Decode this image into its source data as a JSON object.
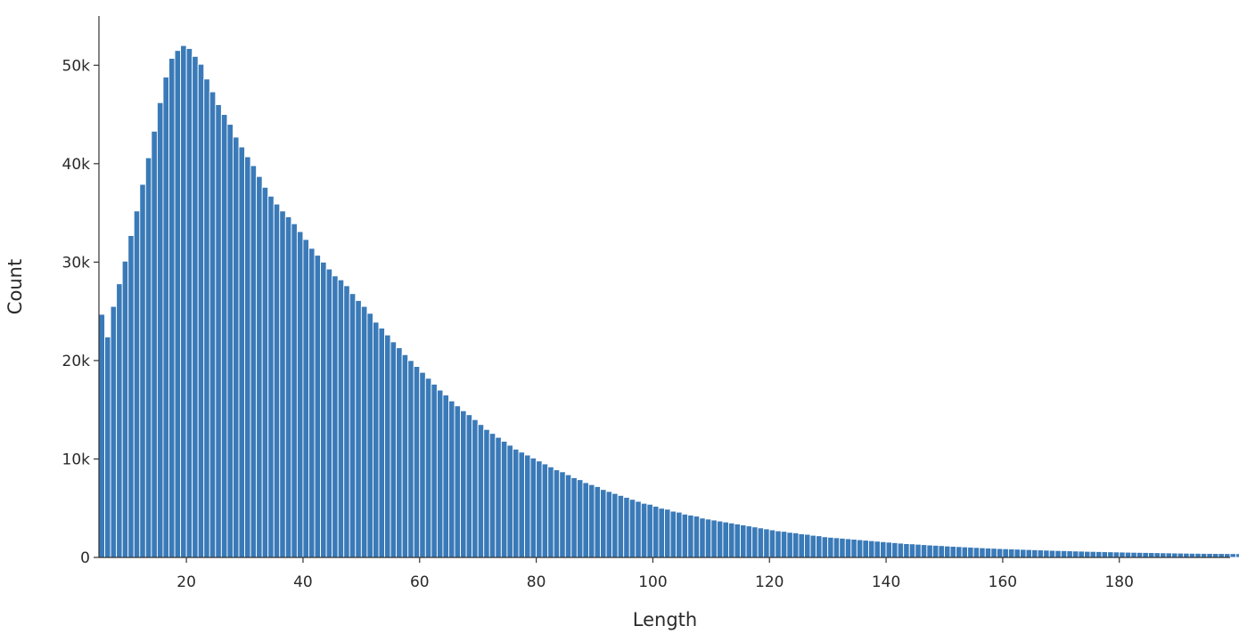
{
  "chart_data": {
    "type": "bar",
    "title": "",
    "xlabel": "Length",
    "ylabel": "Count",
    "bar_color": "#3a7ab8",
    "grid": false,
    "legend": "none",
    "xlim": [
      5,
      199
    ],
    "ylim": [
      0,
      55000
    ],
    "xticks": [
      20,
      40,
      60,
      80,
      100,
      120,
      140,
      160,
      180
    ],
    "yticks": [
      0,
      10000,
      20000,
      30000,
      40000,
      50000
    ],
    "ytick_labels": [
      "0",
      "10k",
      "20k",
      "30k",
      "40k",
      "50k"
    ],
    "x_start": 5,
    "values": [
      24700,
      22400,
      25500,
      27800,
      30100,
      32700,
      35200,
      37900,
      40600,
      43300,
      46200,
      48800,
      50700,
      51500,
      52000,
      51700,
      50900,
      50100,
      48600,
      47300,
      46000,
      45000,
      44000,
      42700,
      41700,
      40700,
      39800,
      38700,
      37600,
      36700,
      35900,
      35200,
      34600,
      33900,
      33100,
      32300,
      31400,
      30700,
      30000,
      29300,
      28600,
      28200,
      27600,
      26800,
      26100,
      25500,
      24800,
      23900,
      23300,
      22600,
      21900,
      21300,
      20600,
      20000,
      19400,
      18800,
      18200,
      17600,
      17000,
      16500,
      15900,
      15400,
      14900,
      14500,
      14000,
      13500,
      13000,
      12600,
      12200,
      11800,
      11400,
      11000,
      10700,
      10400,
      10100,
      9800,
      9500,
      9200,
      8900,
      8700,
      8400,
      8100,
      7900,
      7600,
      7400,
      7200,
      6900,
      6700,
      6500,
      6300,
      6100,
      5900,
      5700,
      5500,
      5400,
      5200,
      5000,
      4900,
      4700,
      4600,
      4400,
      4300,
      4200,
      4000,
      3900,
      3800,
      3700,
      3600,
      3500,
      3400,
      3300,
      3200,
      3100,
      3000,
      2900,
      2800,
      2700,
      2650,
      2550,
      2500,
      2400,
      2350,
      2250,
      2200,
      2100,
      2050,
      2000,
      1950,
      1900,
      1850,
      1800,
      1750,
      1700,
      1650,
      1600,
      1550,
      1500,
      1450,
      1400,
      1380,
      1340,
      1300,
      1260,
      1230,
      1200,
      1160,
      1130,
      1100,
      1070,
      1040,
      1010,
      980,
      950,
      930,
      900,
      880,
      860,
      840,
      820,
      800,
      780,
      760,
      740,
      720,
      700,
      690,
      670,
      650,
      640,
      620,
      610,
      595,
      580,
      570,
      555,
      545,
      530,
      520,
      510,
      500,
      490,
      480,
      470,
      460,
      450,
      440,
      430,
      420,
      415,
      410,
      405,
      400,
      395,
      390,
      385,
      380
    ]
  }
}
